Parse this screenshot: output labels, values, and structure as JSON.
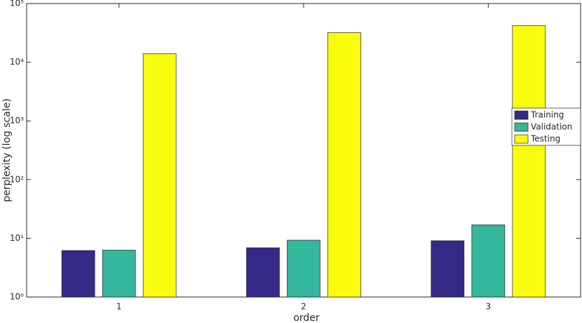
{
  "chart_data": {
    "type": "bar",
    "log_scale": true,
    "xlabel": "order",
    "ylabel": "perplexity (log scale)",
    "categories": [
      "1",
      "2",
      "3"
    ],
    "series": [
      {
        "name": "Training",
        "color": "#352a87",
        "values": [
          6.2,
          6.9,
          9.1
        ]
      },
      {
        "name": "Validation",
        "color": "#35b79e",
        "values": [
          6.3,
          9.3,
          17
        ]
      },
      {
        "name": "Testing",
        "color": "#f9fb0e",
        "values": [
          14000,
          32000,
          42000
        ]
      }
    ],
    "ylim": [
      1,
      100000
    ],
    "yticks": [
      {
        "value": 1,
        "label": "10⁰"
      },
      {
        "value": 10,
        "label": "10¹"
      },
      {
        "value": 100,
        "label": "10²"
      },
      {
        "value": 1000,
        "label": "10³"
      },
      {
        "value": 10000,
        "label": "10⁴"
      },
      {
        "value": 100000,
        "label": "10⁵"
      }
    ],
    "legend": "right"
  }
}
